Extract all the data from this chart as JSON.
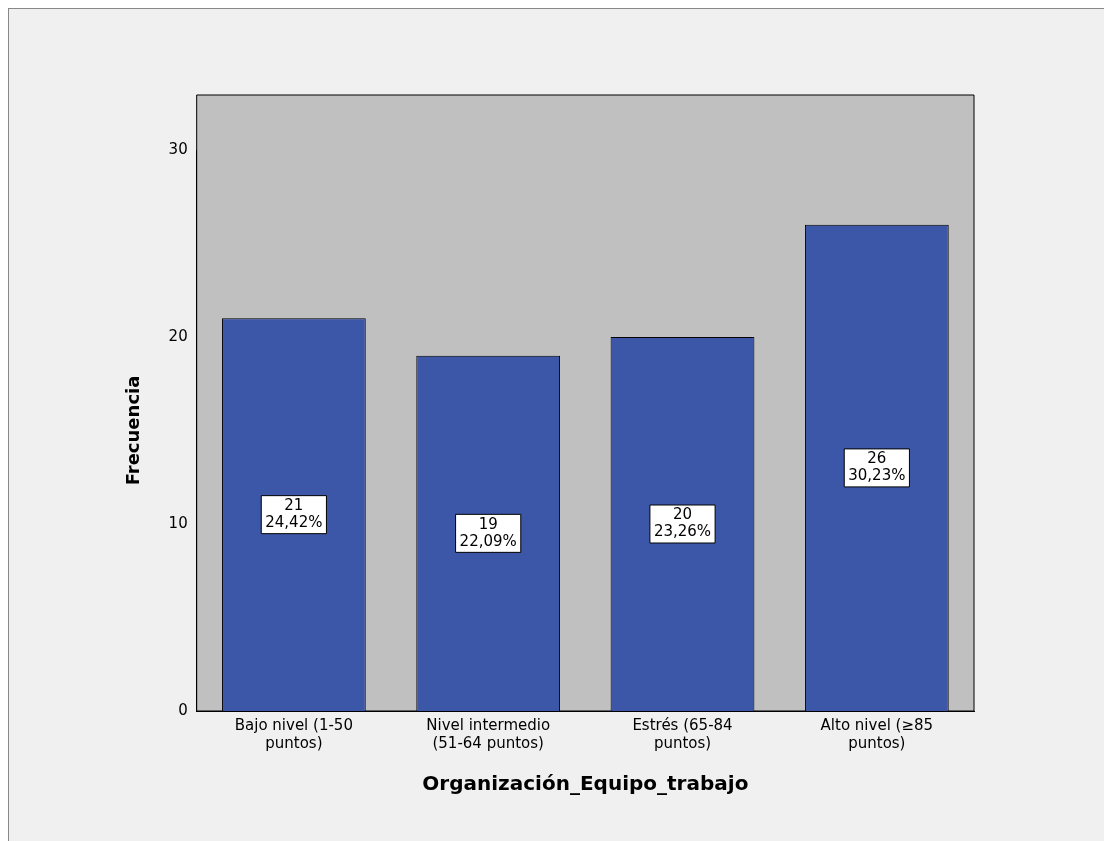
{
  "chart_data": {
    "type": "bar",
    "xlabel": "Organización_Equipo_trabajo",
    "ylabel": "Frecuencia",
    "categories": [
      "Bajo nivel (1-50 puntos)",
      "Nivel intermedio (51-64 puntos)",
      "Estrés (65-84 puntos)",
      "Alto nivel (≥85 puntos)"
    ],
    "values": [
      21,
      19,
      20,
      26
    ],
    "color": "#3c56a8",
    "value_labels": [
      "21\n24,42%",
      "19\n22,09%",
      "20\n23,26%",
      "26\n30,23%"
    ],
    "ylim": [
      0,
      30
    ],
    "yticks": [
      0,
      10,
      20,
      30
    ],
    "grid": false,
    "legend": false
  }
}
